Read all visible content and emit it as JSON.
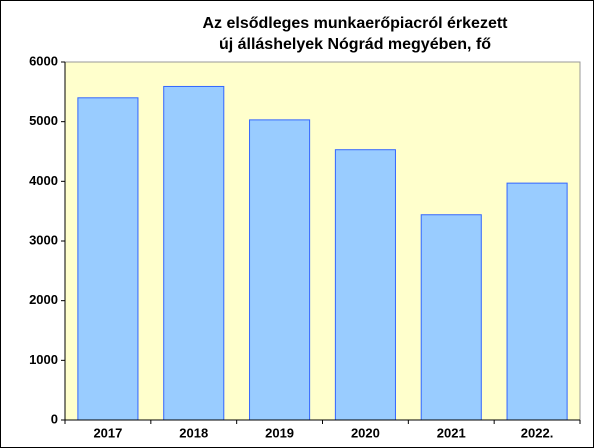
{
  "chart_data": {
    "type": "bar",
    "title": [
      "Az elsődleges munkaerőpiacról érkezett",
      "új álláshelyek Nógrád megyében, fő"
    ],
    "categories": [
      "2017",
      "2018",
      "2019",
      "2020",
      "2021",
      "2022."
    ],
    "values": [
      5400,
      5590,
      5030,
      4530,
      3440,
      3970
    ],
    "color": "#99ccff",
    "edge_color": "#3366ff",
    "plot_background": "#ffffcc",
    "ylim": [
      0,
      6000
    ],
    "yticks": [
      0,
      1000,
      2000,
      3000,
      4000,
      5000,
      6000
    ],
    "grid": false
  }
}
